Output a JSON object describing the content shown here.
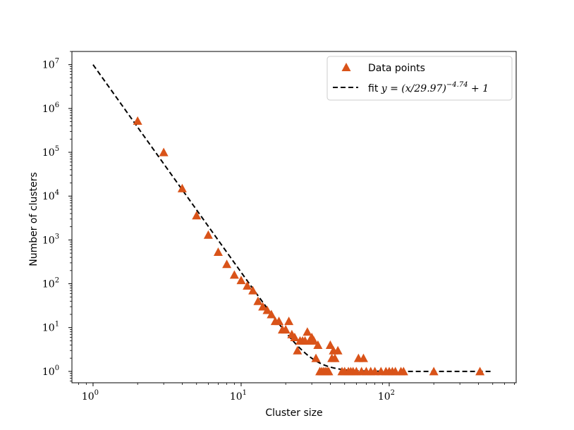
{
  "chart_data": {
    "type": "scatter",
    "x_scale": "log",
    "y_scale": "log",
    "xlim": [
      0.72,
      720
    ],
    "ylim": [
      0.55,
      20000000
    ],
    "grid": false,
    "legend_position": "top-right",
    "xlabel": "Cluster size",
    "ylabel": "Number of clusters",
    "x_ticks": [
      {
        "base": "10",
        "exp": "0",
        "value": 1
      },
      {
        "base": "10",
        "exp": "1",
        "value": 10
      },
      {
        "base": "10",
        "exp": "2",
        "value": 100
      }
    ],
    "y_ticks": [
      {
        "base": "10",
        "exp": "0",
        "value": 1
      },
      {
        "base": "10",
        "exp": "1",
        "value": 10
      },
      {
        "base": "10",
        "exp": "2",
        "value": 100
      },
      {
        "base": "10",
        "exp": "3",
        "value": 1000
      },
      {
        "base": "10",
        "exp": "4",
        "value": 10000
      },
      {
        "base": "10",
        "exp": "5",
        "value": 100000
      },
      {
        "base": "10",
        "exp": "6",
        "value": 1000000
      },
      {
        "base": "10",
        "exp": "7",
        "value": 10000000
      }
    ],
    "series": [
      {
        "name": "Data points",
        "kind": "scatter",
        "marker": "triangle",
        "color": "#d95319",
        "points": [
          [
            2,
            520000
          ],
          [
            3,
            100000
          ],
          [
            4,
            15000
          ],
          [
            5,
            3600
          ],
          [
            6,
            1300
          ],
          [
            7,
            530
          ],
          [
            8,
            280
          ],
          [
            9,
            160
          ],
          [
            10,
            120
          ],
          [
            11,
            90
          ],
          [
            12,
            70
          ],
          [
            13,
            40
          ],
          [
            14,
            30
          ],
          [
            15,
            25
          ],
          [
            16,
            20
          ],
          [
            17,
            14
          ],
          [
            18,
            14
          ],
          [
            19,
            9
          ],
          [
            20,
            9
          ],
          [
            21,
            14
          ],
          [
            22,
            7
          ],
          [
            23,
            6
          ],
          [
            24,
            3
          ],
          [
            25,
            5
          ],
          [
            26,
            5
          ],
          [
            27,
            5
          ],
          [
            28,
            8
          ],
          [
            29,
            5
          ],
          [
            30,
            6
          ],
          [
            31,
            5
          ],
          [
            32,
            2
          ],
          [
            33,
            4
          ],
          [
            34,
            1
          ],
          [
            35,
            1
          ],
          [
            36,
            1
          ],
          [
            37,
            1
          ],
          [
            38,
            1
          ],
          [
            39,
            1
          ],
          [
            40,
            4
          ],
          [
            41,
            2
          ],
          [
            42,
            3
          ],
          [
            43,
            2
          ],
          [
            45,
            3
          ],
          [
            48,
            1
          ],
          [
            50,
            1
          ],
          [
            53,
            1
          ],
          [
            55,
            1
          ],
          [
            57,
            1
          ],
          [
            60,
            1
          ],
          [
            62,
            2
          ],
          [
            65,
            1
          ],
          [
            67,
            2
          ],
          [
            70,
            1
          ],
          [
            75,
            1
          ],
          [
            80,
            1
          ],
          [
            88,
            1
          ],
          [
            95,
            1
          ],
          [
            100,
            1
          ],
          [
            105,
            1
          ],
          [
            110,
            1
          ],
          [
            120,
            1
          ],
          [
            125,
            1
          ],
          [
            200,
            1
          ],
          [
            410,
            1
          ]
        ]
      },
      {
        "name": "fit",
        "kind": "line",
        "style": "dashed",
        "color": "#000000",
        "fit_params": {
          "scale": 29.97,
          "exponent": -4.74,
          "offset": 1
        },
        "x_range": [
          1,
          500
        ]
      }
    ],
    "legend": {
      "entries": [
        {
          "label": "Data points"
        },
        {
          "label_prefix": "fit ",
          "eq_main": "y = (x/29.97)",
          "eq_sup": "−4.74",
          "eq_tail": " + 1"
        }
      ]
    }
  }
}
